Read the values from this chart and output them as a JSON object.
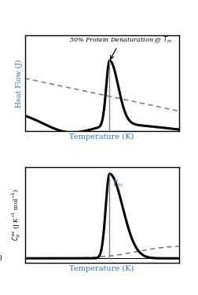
{
  "title1_text": "50% Protein Denaturation @ $T_m$",
  "ylabel1": "Heat Flow (J)",
  "xlabel1": "Temperature (K)",
  "ylabel2": "$C_{p}^{ex}$ (J K$^{-1}$ mol$^{-1}$)",
  "xlabel2": "Temperature (K)",
  "tm_label": "$T_m$",
  "tm_color": "#5b8db8",
  "bg_color": "#ffffff",
  "line_color": "#000000",
  "dashed_color": "#777777",
  "axis_label_color": "#3a6fa8",
  "ylabel_color": "#000000",
  "zero_label": "0",
  "annotation_color": "#000000",
  "tm": 5.5,
  "xlim": [
    0,
    10
  ]
}
